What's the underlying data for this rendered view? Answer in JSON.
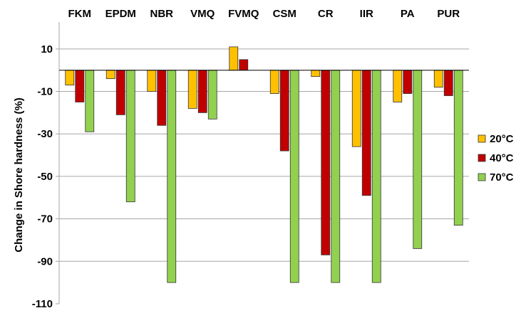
{
  "chart_data": {
    "type": "bar",
    "title": "",
    "xlabel": "",
    "ylabel": "Change in Shore hardness (%)",
    "categories": [
      "FKM",
      "EPDM",
      "NBR",
      "VMQ",
      "FVMQ",
      "CSM",
      "CR",
      "IIR",
      "PA",
      "PUR"
    ],
    "series": [
      {
        "name": "20°C",
        "color": "#FFC000",
        "values": [
          -7,
          -4,
          -10,
          -18,
          11,
          -11,
          -3,
          -36,
          -15,
          -8
        ]
      },
      {
        "name": "40°C",
        "color": "#C00000",
        "values": [
          -15,
          -21,
          -26,
          -20,
          5,
          -38,
          -87,
          -59,
          -11,
          -12
        ]
      },
      {
        "name": "70°C",
        "color": "#92D050",
        "values": [
          -29,
          -62,
          -100,
          -23,
          0,
          -100,
          -100,
          -100,
          -84,
          -73
        ]
      }
    ],
    "ylim": [
      -110,
      20
    ],
    "yticks": [
      10,
      -10,
      -30,
      -50,
      -70,
      -90,
      -110
    ],
    "grid": true,
    "legend_position": "right"
  }
}
